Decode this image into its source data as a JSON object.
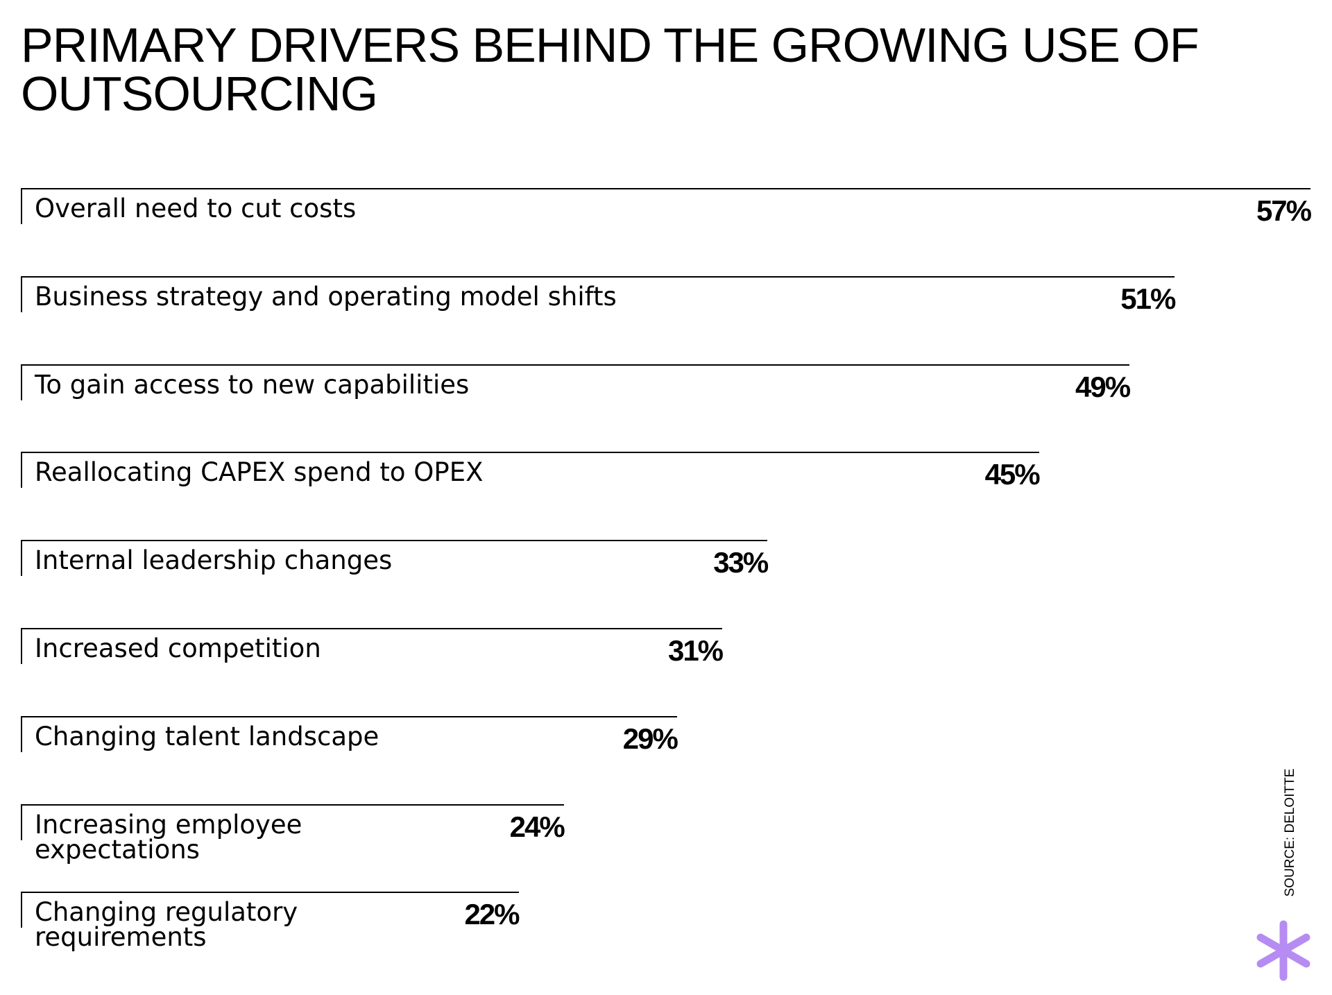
{
  "chart_data": {
    "type": "bar",
    "orientation": "horizontal",
    "title": "PRIMARY DRIVERS BEHIND THE GROWING USE OF OUTSOURCING",
    "categories": [
      "Overall need to cut costs",
      "Business strategy and operating model shifts",
      "To gain access to new capabilities",
      "Reallocating CAPEX spend to OPEX",
      "Internal leadership changes",
      "Increased competition",
      "Changing talent landscape",
      "Increasing employee expectations",
      "Changing regulatory requirements"
    ],
    "values": [
      57,
      51,
      49,
      45,
      33,
      31,
      29,
      24,
      22
    ],
    "value_labels": [
      "57%",
      "51%",
      "49%",
      "45%",
      "33%",
      "31%",
      "29%",
      "24%",
      "22%"
    ],
    "color": "#000000",
    "source": "SOURCE: DELOITTE"
  }
}
